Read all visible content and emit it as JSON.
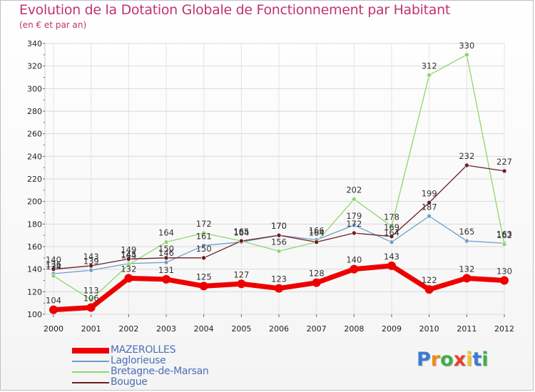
{
  "header": {
    "title": "Evolution de la Dotation Globale de Fonctionnement par Habitant",
    "subtitle": "(en € et par an)"
  },
  "logo": {
    "letters": [
      "P",
      "r",
      "o",
      "x",
      "i",
      "t",
      "i"
    ],
    "text": "Proxiti"
  },
  "colors": {
    "MAZEROLLES": "#ee0000",
    "Laglorieuse": "#6f9fca",
    "Bretagne-de-Marsan": "#8fd66a",
    "Bougue": "#6b1e22"
  },
  "chart_data": {
    "type": "line",
    "title": "Evolution de la Dotation Globale de Fonctionnement par Habitant",
    "subtitle": "(en € et par an)",
    "xlabel": "",
    "ylabel": "",
    "categories": [
      "2000",
      "2001",
      "2002",
      "2003",
      "2004",
      "2005",
      "2006",
      "2007",
      "2008",
      "2009",
      "2010",
      "2011",
      "2012"
    ],
    "ylim": [
      100,
      340
    ],
    "yticks": [
      100,
      120,
      140,
      160,
      180,
      200,
      220,
      240,
      260,
      280,
      300,
      320,
      340
    ],
    "grid": true,
    "legend": "bottom-left",
    "series": [
      {
        "name": "MAZEROLLES",
        "values": [
          104,
          106,
          132,
          131,
          125,
          127,
          123,
          128,
          140,
          143,
          122,
          132,
          130
        ],
        "labels": [
          "104",
          "106",
          "132",
          "131",
          "125",
          "127",
          "123",
          "128",
          "140",
          "143",
          "122",
          "132",
          "130"
        ]
      },
      {
        "name": "Laglorieuse",
        "values": [
          136,
          139,
          145,
          146,
          161,
          164,
          170,
          166,
          179,
          164,
          187,
          165,
          163
        ],
        "labels": [
          "136",
          "139",
          "145",
          "146",
          "161",
          "164",
          "170",
          "166",
          "179",
          "164",
          "187",
          "165",
          "163"
        ]
      },
      {
        "name": "Bretagne-de-Marsan",
        "values": [
          134,
          113,
          144,
          164,
          172,
          165,
          156,
          164,
          202,
          178,
          312,
          330,
          162
        ],
        "labels": [
          "134",
          "113",
          "144",
          "164",
          "172",
          "165",
          "156",
          "164",
          "202",
          "178",
          "312",
          "330",
          "162"
        ]
      },
      {
        "name": "Bougue",
        "values": [
          140,
          143,
          149,
          150,
          150,
          165,
          170,
          164,
          172,
          169,
          199,
          232,
          227
        ],
        "labels": [
          "140",
          "143",
          "149",
          "150",
          "150",
          "165",
          "170",
          "164",
          "172",
          "169",
          "199",
          "232",
          "227"
        ]
      }
    ]
  }
}
